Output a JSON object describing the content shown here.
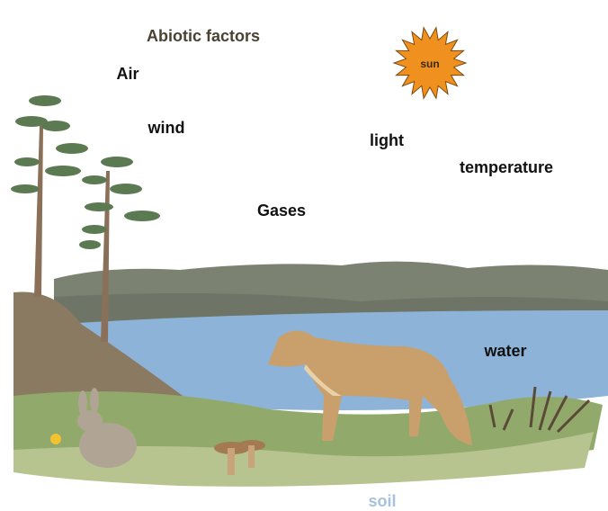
{
  "title": "Abiotic factors",
  "labels": {
    "air": "Air",
    "wind": "wind",
    "light": "light",
    "temperature": "temperature",
    "gases": "Gases",
    "water": "water",
    "soil": "soil",
    "sun": "sun"
  }
}
